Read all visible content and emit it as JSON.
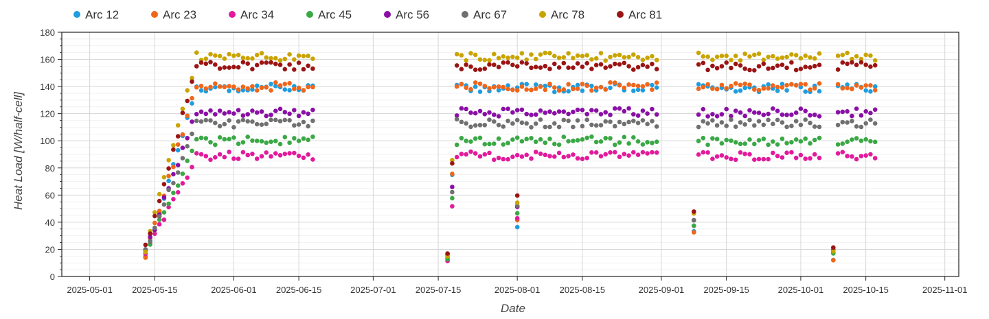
{
  "chart_data": {
    "type": "scatter",
    "xlabel": "Date",
    "ylabel": "Heat Load [W/half-cell]",
    "title": "",
    "ylim": [
      0,
      180
    ],
    "xlim": [
      "2025-04-25",
      "2025-11-04"
    ],
    "y_ticks": [
      0,
      20,
      40,
      60,
      80,
      100,
      120,
      140,
      160,
      180
    ],
    "x_ticks": [
      "2025-05-01",
      "2025-05-15",
      "2025-06-01",
      "2025-06-15",
      "2025-07-01",
      "2025-07-15",
      "2025-08-01",
      "2025-08-15",
      "2025-09-01",
      "2025-09-15",
      "2025-10-01",
      "2025-10-15",
      "2025-11-01"
    ],
    "grid": true,
    "legend_position": "top",
    "series": [
      {
        "name": "Arc 12",
        "color": "#1f9ddf",
        "plateau": 139,
        "ramp_peak": 62
      },
      {
        "name": "Arc 23",
        "color": "#f0661a",
        "plateau": 140,
        "ramp_peak": 66
      },
      {
        "name": "Arc 34",
        "color": "#e21a9c",
        "plateau": 89,
        "ramp_peak": 68
      },
      {
        "name": "Arc 45",
        "color": "#3aa845",
        "plateau": 100,
        "ramp_peak": 70
      },
      {
        "name": "Arc 56",
        "color": "#8a0fa6",
        "plateau": 121,
        "ramp_peak": 72
      },
      {
        "name": "Arc 67",
        "color": "#707070",
        "plateau": 113,
        "ramp_peak": 68
      },
      {
        "name": "Arc 78",
        "color": "#c9a400",
        "plateau": 162,
        "ramp_peak": 77
      },
      {
        "name": "Arc 81",
        "color": "#9b1414",
        "plateau": 155,
        "ramp_peak": 72
      }
    ],
    "periods": [
      {
        "start": "2025-05-13",
        "end": "2025-06-18",
        "ramp_start": 20,
        "ramp_end": "2025-05-24"
      },
      {
        "start": "2025-07-17",
        "end": "2025-08-01",
        "ramp_start": 15,
        "ramp_end": "2025-07-19"
      },
      {
        "start": "2025-08-01",
        "end": "2025-08-31",
        "ramp_start": 55,
        "ramp_end": "2025-08-02"
      },
      {
        "start": "2025-09-08",
        "end": "2025-10-05",
        "ramp_start": 45,
        "ramp_end": "2025-09-09"
      },
      {
        "start": "2025-10-08",
        "end": "2025-10-17",
        "ramp_start": 18,
        "ramp_end": "2025-10-09"
      }
    ]
  }
}
